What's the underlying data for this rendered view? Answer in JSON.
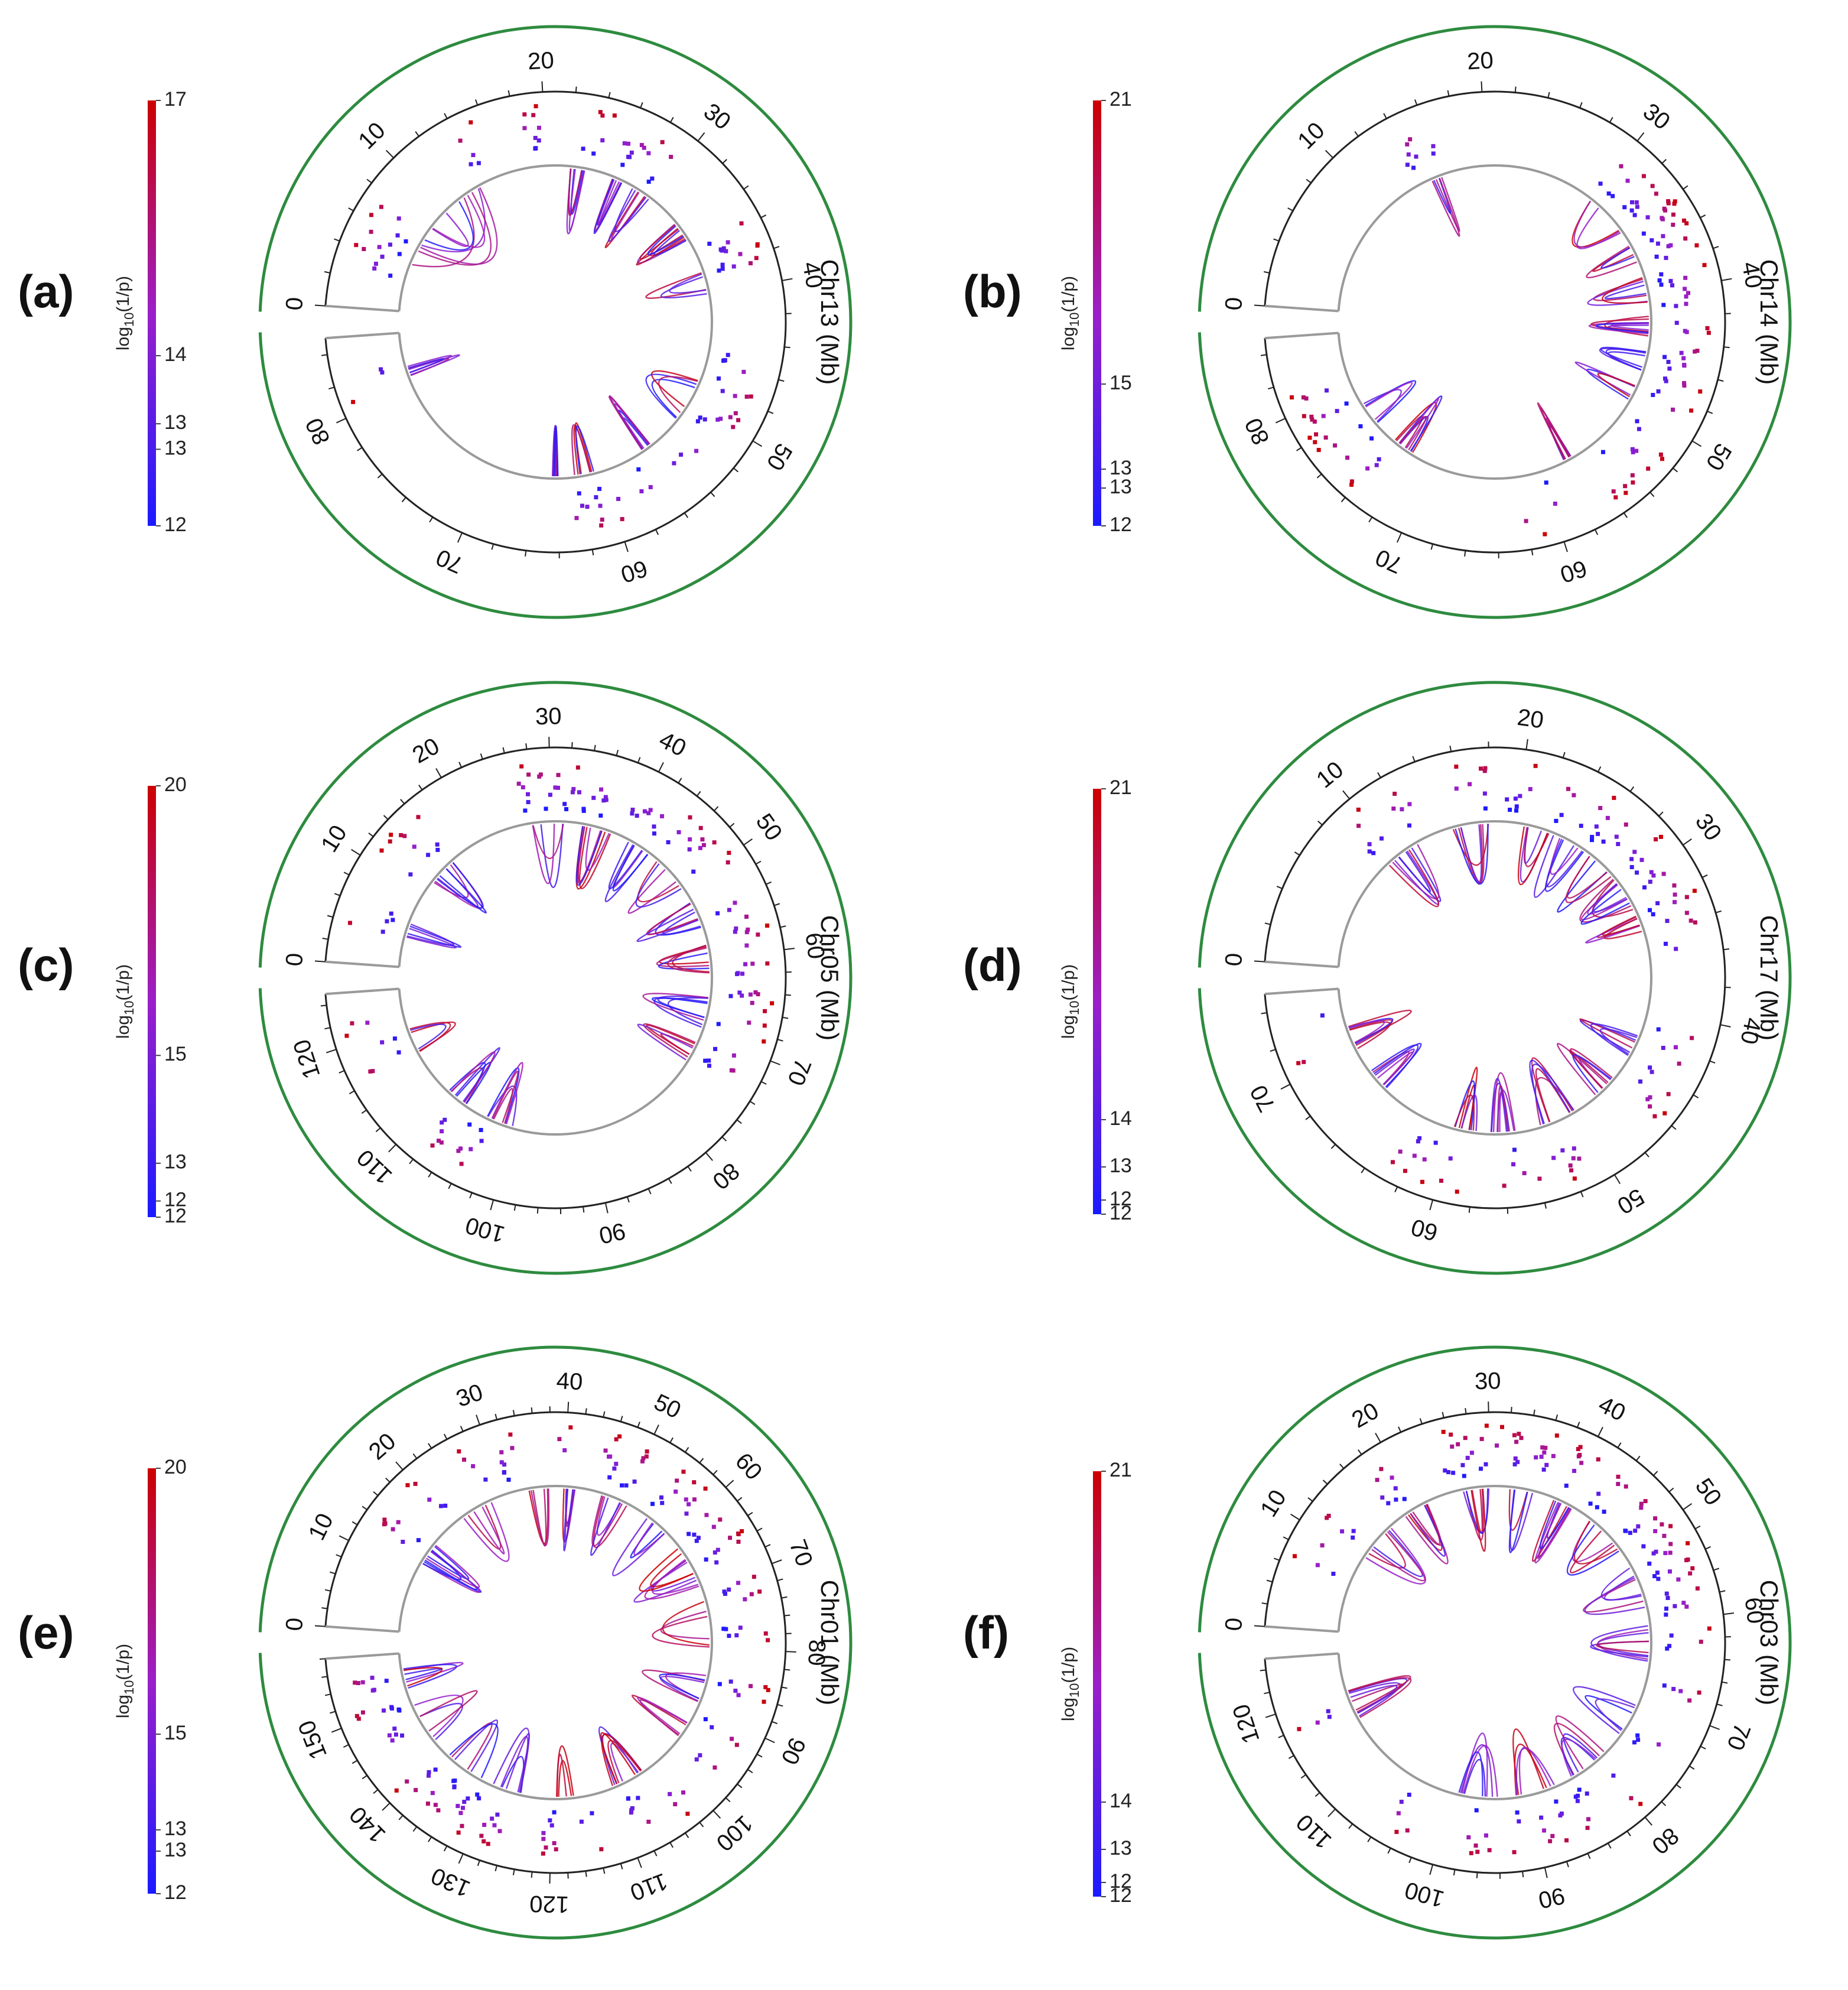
{
  "figure": {
    "colorbar_title_base": "log",
    "colorbar_title_sub": "10",
    "colorbar_title_rest": "(1/p)",
    "color_low": "#1a1aff",
    "color_mid": "#9b1fc9",
    "color_high": "#cc0000",
    "outer_ring_color": "#2e8b3f",
    "track_color": "#9a9a9a"
  },
  "chart_data": [
    {
      "type": "circos",
      "panel": "(a)",
      "chromosome_label": "Chr13 (Mb)",
      "length_mb": 85,
      "tick_labels": [
        "0",
        "10",
        "20",
        "30",
        "40",
        "50",
        "60",
        "70",
        "80"
      ],
      "colorbar": {
        "min": 12,
        "max": 17,
        "labels": [
          "17",
          "14",
          "13",
          "13",
          "12"
        ],
        "values": [
          17,
          14,
          13.2,
          12.9,
          12
        ]
      },
      "snp_clusters_mb": [
        4,
        5,
        6,
        15,
        19,
        24,
        27,
        29,
        37,
        38,
        46,
        48,
        50,
        54,
        57,
        60,
        62,
        82
      ],
      "link_arcs_mb": [
        [
          4,
          14
        ],
        [
          5,
          13
        ],
        [
          22,
          23.5
        ],
        [
          26,
          27
        ],
        [
          28,
          30
        ],
        [
          33,
          35
        ],
        [
          38,
          40
        ],
        [
          47,
          52
        ],
        [
          55,
          56
        ],
        [
          60,
          63
        ],
        [
          64,
          64.5
        ],
        [
          81,
          82
        ]
      ]
    },
    {
      "type": "circos",
      "panel": "(b)",
      "chromosome_label": "Chr14 (Mb)",
      "length_mb": 85,
      "tick_labels": [
        "0",
        "10",
        "20",
        "30",
        "40",
        "50",
        "60",
        "70",
        "80"
      ],
      "colorbar": {
        "min": 12,
        "max": 21,
        "labels": [
          "21",
          "15",
          "13",
          "13",
          "12"
        ],
        "values": [
          21,
          15,
          13.2,
          12.8,
          12
        ]
      },
      "snp_clusters_mb": [
        15,
        30,
        32,
        34,
        35,
        36,
        38,
        40,
        42,
        44,
        46,
        48,
        52,
        55,
        61,
        75,
        78,
        80
      ],
      "link_arcs_mb": [
        [
          15,
          16
        ],
        [
          30,
          34
        ],
        [
          35,
          37
        ],
        [
          38,
          41
        ],
        [
          42,
          44
        ],
        [
          45,
          47
        ],
        [
          48,
          50
        ],
        [
          57,
          58
        ],
        [
          72,
          74
        ],
        [
          76,
          79
        ]
      ]
    },
    {
      "type": "circos",
      "panel": "(c)",
      "chromosome_label": "Chr05 (Mb)",
      "length_mb": 125,
      "tick_labels": [
        "0",
        "10",
        "20",
        "30",
        "40",
        "50",
        "60",
        "70",
        "80",
        "90",
        "100",
        "110",
        "120"
      ],
      "colorbar": {
        "min": 12,
        "max": 20,
        "labels": [
          "20",
          "15",
          "13",
          "12",
          "12"
        ],
        "values": [
          20,
          15,
          13,
          12.3,
          12
        ]
      },
      "snp_clusters_mb": [
        5,
        12,
        15,
        28,
        30,
        32,
        35,
        40,
        42,
        45,
        48,
        50,
        55,
        58,
        62,
        65,
        68,
        72,
        104,
        108,
        118,
        122
      ],
      "link_arcs_mb": [
        [
          12,
          16
        ],
        [
          27,
          32
        ],
        [
          34,
          38
        ],
        [
          40,
          44
        ],
        [
          45,
          50
        ],
        [
          52,
          56
        ],
        [
          58,
          62
        ],
        [
          64,
          70
        ],
        [
          71,
          74
        ],
        [
          100,
          104
        ],
        [
          106,
          110
        ],
        [
          116,
          120
        ],
        [
          4,
          6
        ]
      ]
    },
    {
      "type": "circos",
      "panel": "(d)",
      "chromosome_label": "Chr17 (Mb)",
      "length_mb": 75,
      "tick_labels": [
        "0",
        "10",
        "20",
        "30",
        "40",
        "50",
        "60",
        "70"
      ],
      "colorbar": {
        "min": 12,
        "max": 21,
        "labels": [
          "21",
          "14",
          "13",
          "12",
          "12"
        ],
        "values": [
          21,
          14,
          13,
          12.3,
          12
        ]
      },
      "snp_clusters_mb": [
        10,
        12,
        17,
        20,
        24,
        26,
        28,
        30,
        32,
        33,
        35,
        42,
        45,
        52,
        55,
        60,
        62,
        72
      ],
      "link_arcs_mb": [
        [
          9,
          12
        ],
        [
          15,
          18
        ],
        [
          20,
          23
        ],
        [
          23,
          26
        ],
        [
          26,
          29
        ],
        [
          29,
          32
        ],
        [
          32,
          34
        ],
        [
          42,
          44
        ],
        [
          46,
          48
        ],
        [
          50,
          53
        ],
        [
          55,
          57
        ],
        [
          58,
          60
        ],
        [
          66,
          68
        ],
        [
          70,
          72
        ]
      ]
    },
    {
      "type": "circos",
      "panel": "(e)",
      "chromosome_label": "Chr01 (Mb)",
      "length_mb": 158,
      "tick_labels": [
        "0",
        "10",
        "20",
        "30",
        "40",
        "50",
        "60",
        "70",
        "80",
        "90",
        "100",
        "110",
        "120",
        "130",
        "140",
        "150"
      ],
      "colorbar": {
        "min": 12,
        "max": 20,
        "labels": [
          "20",
          "15",
          "13",
          "13",
          "12"
        ],
        "values": [
          20,
          15,
          13.2,
          12.8,
          12
        ]
      },
      "snp_clusters_mb": [
        14,
        20,
        27,
        32,
        40,
        46,
        50,
        55,
        58,
        62,
        66,
        72,
        78,
        85,
        92,
        96,
        102,
        108,
        115,
        120,
        128,
        132,
        136,
        140,
        146,
        150,
        154
      ],
      "link_arcs_mb": [
        [
          12,
          16
        ],
        [
          22,
          28
        ],
        [
          34,
          38
        ],
        [
          40,
          42
        ],
        [
          46,
          52
        ],
        [
          54,
          60
        ],
        [
          62,
          70
        ],
        [
          72,
          80
        ],
        [
          84,
          90
        ],
        [
          92,
          96
        ],
        [
          104,
          110
        ],
        [
          116,
          120
        ],
        [
          124,
          130
        ],
        [
          132,
          140
        ],
        [
          142,
          150
        ],
        [
          152,
          156
        ]
      ]
    },
    {
      "type": "circos",
      "panel": "(f)",
      "chromosome_label": "Chr03 (Mb)",
      "length_mb": 125,
      "tick_labels": [
        "0",
        "10",
        "20",
        "30",
        "40",
        "50",
        "60",
        "70",
        "80",
        "90",
        "100",
        "110",
        "120"
      ],
      "colorbar": {
        "min": 12,
        "max": 21,
        "labels": [
          "21",
          "14",
          "13",
          "12",
          "12"
        ],
        "values": [
          21,
          14,
          13,
          12.3,
          12
        ]
      },
      "snp_clusters_mb": [
        8,
        12,
        18,
        26,
        28,
        30,
        32,
        36,
        40,
        44,
        48,
        50,
        52,
        55,
        58,
        62,
        68,
        74,
        80,
        84,
        88,
        92,
        96,
        104,
        118
      ],
      "link_arcs_mb": [
        [
          10,
          16
        ],
        [
          18,
          22
        ],
        [
          26,
          30
        ],
        [
          32,
          36
        ],
        [
          38,
          42
        ],
        [
          44,
          50
        ],
        [
          52,
          58
        ],
        [
          60,
          66
        ],
        [
          70,
          76
        ],
        [
          78,
          84
        ],
        [
          86,
          92
        ],
        [
          94,
          100
        ],
        [
          116,
          120
        ]
      ]
    }
  ]
}
